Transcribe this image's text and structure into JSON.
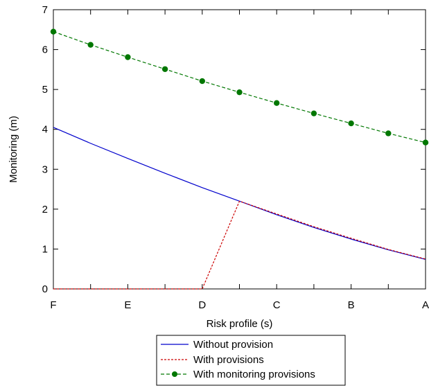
{
  "chart_data": {
    "type": "line",
    "xlabel": "Risk profile (s)",
    "ylabel": "Monitoring (m)",
    "x_tick_labels": [
      "F",
      "E",
      "D",
      "C",
      "B",
      "A"
    ],
    "y_ticks": [
      "0",
      "1",
      "2",
      "3",
      "4",
      "5",
      "6",
      "7"
    ],
    "xlim": [
      0,
      10
    ],
    "ylim": [
      0,
      7
    ],
    "grid": false,
    "legend_position": "bottom",
    "series": [
      {
        "name": "Without provision",
        "color": "#0000cc",
        "style": "solid",
        "x": [
          0,
          1,
          2,
          3,
          4,
          5,
          6,
          7,
          8,
          9,
          10
        ],
        "y": [
          4.05,
          3.65,
          3.27,
          2.9,
          2.54,
          2.2,
          1.86,
          1.54,
          1.25,
          0.98,
          0.74
        ]
      },
      {
        "name": "With provisions",
        "color": "#cc0000",
        "style": "dashed",
        "x": [
          0,
          4,
          5,
          6,
          7,
          8,
          9,
          10
        ],
        "y": [
          0,
          0,
          2.2,
          1.88,
          1.56,
          1.27,
          0.99,
          0.75
        ]
      },
      {
        "name": "With monitoring provisions",
        "color": "#007700",
        "style": "dashed-markers",
        "x": [
          0,
          1,
          2,
          3,
          4,
          5,
          6,
          7,
          8,
          9,
          10
        ],
        "y": [
          6.45,
          6.12,
          5.81,
          5.51,
          5.21,
          4.93,
          4.66,
          4.4,
          4.15,
          3.9,
          3.67
        ]
      }
    ]
  }
}
